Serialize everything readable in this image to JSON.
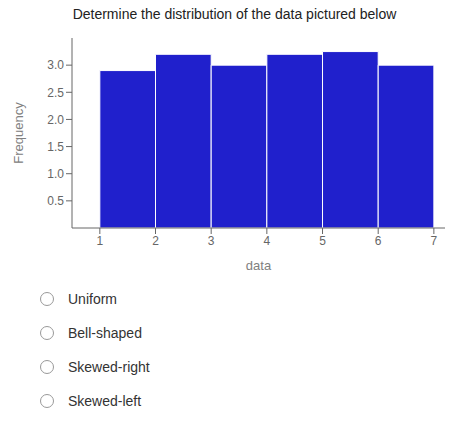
{
  "chart_data": {
    "type": "histogram",
    "title": "Determine the distribution of the data pictured below",
    "bins": [
      1,
      2,
      3,
      4,
      5,
      6,
      7
    ],
    "values": [
      2.9,
      3.2,
      3.0,
      3.2,
      3.25,
      3.0
    ],
    "color": "#2020CC",
    "xlabel": "data",
    "ylabel": "Frequency",
    "xlim": [
      0.5,
      7.2
    ],
    "ylim": [
      0,
      3.5
    ],
    "xticks": [
      1,
      2,
      3,
      4,
      5,
      6,
      7
    ],
    "yticks": [
      0.5,
      {
        "value": 1.0,
        "label": "1.0"
      },
      1.5,
      {
        "value": 2.0,
        "label": "2.0"
      },
      2.5,
      {
        "value": 3.0,
        "label": "3.0"
      }
    ],
    "grid": false,
    "annotations": [
      "Uniform",
      "Bell-shaped",
      "Skewed-right",
      "Skewed-left"
    ]
  }
}
